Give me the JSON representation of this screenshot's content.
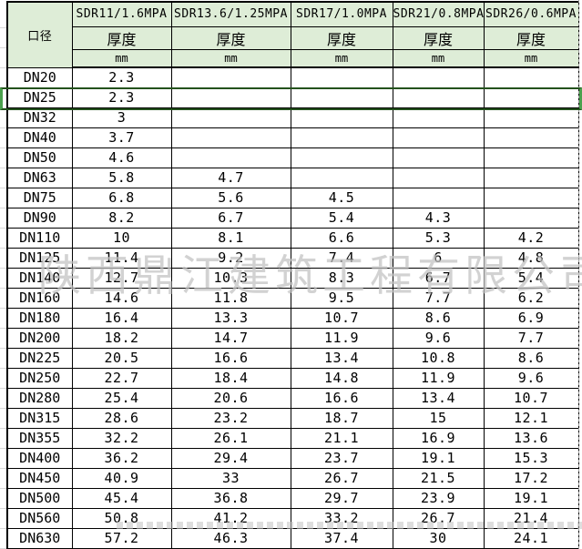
{
  "watermark": {
    "text": "陕西鼎江建筑工程有限公司"
  },
  "colors": {
    "header_bg": "#deedd7",
    "grid_line": "#000000",
    "selection_green": "#4ba14e",
    "page_break_gray": "#9c9c9c",
    "watermark_gray": "#c2c2c2"
  },
  "table": {
    "corner_header": "口径",
    "columns": [
      {
        "label": "SDR11/1.6MPA",
        "thickness_label": "厚度",
        "unit": "mm"
      },
      {
        "label": "SDR13.6/1.25MPA",
        "thickness_label": "厚度",
        "unit": "mm"
      },
      {
        "label": "SDR17/1.0MPA",
        "thickness_label": "厚度",
        "unit": "mm"
      },
      {
        "label": "SDR21/0.8MPA",
        "thickness_label": "厚度",
        "unit": "mm"
      },
      {
        "label": "SDR26/0.6MPA",
        "thickness_label": "厚度",
        "unit": "mm"
      }
    ],
    "selected_row": "DN25",
    "rows": [
      {
        "dn": "DN20",
        "values": [
          "2.3",
          "",
          "",
          "",
          ""
        ]
      },
      {
        "dn": "DN25",
        "values": [
          "2.3",
          "",
          "",
          "",
          ""
        ]
      },
      {
        "dn": "DN32",
        "values": [
          "3",
          "",
          "",
          "",
          ""
        ]
      },
      {
        "dn": "DN40",
        "values": [
          "3.7",
          "",
          "",
          "",
          ""
        ]
      },
      {
        "dn": "DN50",
        "values": [
          "4.6",
          "",
          "",
          "",
          ""
        ]
      },
      {
        "dn": "DN63",
        "values": [
          "5.8",
          "4.7",
          "",
          "",
          ""
        ]
      },
      {
        "dn": "DN75",
        "values": [
          "6.8",
          "5.6",
          "4.5",
          "",
          ""
        ]
      },
      {
        "dn": "DN90",
        "values": [
          "8.2",
          "6.7",
          "5.4",
          "4.3",
          ""
        ]
      },
      {
        "dn": "DN110",
        "values": [
          "10",
          "8.1",
          "6.6",
          "5.3",
          "4.2"
        ]
      },
      {
        "dn": "DN125",
        "values": [
          "11.4",
          "9.2",
          "7.4",
          "6",
          "4.8"
        ]
      },
      {
        "dn": "DN140",
        "values": [
          "12.7",
          "10.3",
          "8.3",
          "6.7",
          "5.4"
        ]
      },
      {
        "dn": "DN160",
        "values": [
          "14.6",
          "11.8",
          "9.5",
          "7.7",
          "6.2"
        ]
      },
      {
        "dn": "DN180",
        "values": [
          "16.4",
          "13.3",
          "10.7",
          "8.6",
          "6.9"
        ]
      },
      {
        "dn": "DN200",
        "values": [
          "18.2",
          "14.7",
          "11.9",
          "9.6",
          "7.7"
        ]
      },
      {
        "dn": "DN225",
        "values": [
          "20.5",
          "16.6",
          "13.4",
          "10.8",
          "8.6"
        ]
      },
      {
        "dn": "DN250",
        "values": [
          "22.7",
          "18.4",
          "14.8",
          "11.9",
          "9.6"
        ]
      },
      {
        "dn": "DN280",
        "values": [
          "25.4",
          "20.6",
          "16.6",
          "13.4",
          "10.7"
        ]
      },
      {
        "dn": "DN315",
        "values": [
          "28.6",
          "23.2",
          "18.7",
          "15",
          "12.1"
        ]
      },
      {
        "dn": "DN355",
        "values": [
          "32.2",
          "26.1",
          "21.1",
          "16.9",
          "13.6"
        ]
      },
      {
        "dn": "DN400",
        "values": [
          "36.2",
          "29.4",
          "23.7",
          "19.1",
          "15.3"
        ]
      },
      {
        "dn": "DN450",
        "values": [
          "40.9",
          "33",
          "26.7",
          "21.5",
          "17.2"
        ]
      },
      {
        "dn": "DN500",
        "values": [
          "45.4",
          "36.8",
          "29.7",
          "23.9",
          "19.1"
        ]
      },
      {
        "dn": "DN560",
        "values": [
          "50.8",
          "41.2",
          "33.2",
          "26.7",
          "21.4"
        ]
      },
      {
        "dn": "DN630",
        "values": [
          "57.2",
          "46.3",
          "37.4",
          "30",
          "24.1"
        ]
      }
    ]
  }
}
